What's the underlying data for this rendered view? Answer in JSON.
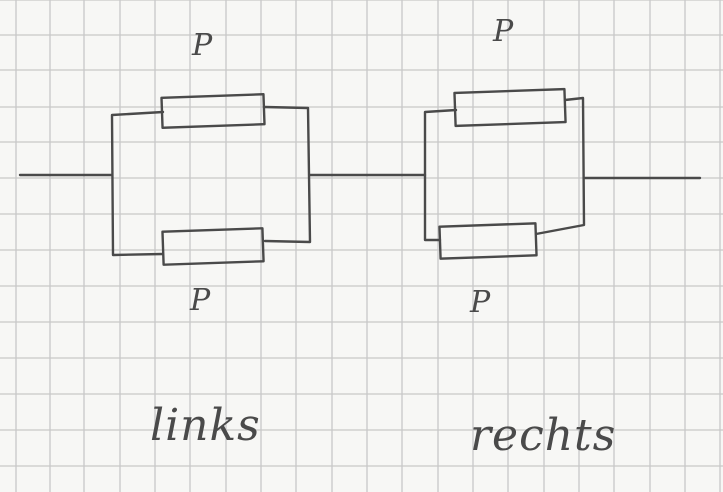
{
  "labels": {
    "left_top": "P",
    "left_bottom": "P",
    "right_top": "P",
    "right_bottom": "P",
    "left_caption": "links",
    "right_caption": "rechts"
  },
  "colors": {
    "paper": "#f7f7f5",
    "grid": "#c8c8c8",
    "ink": "#4a4a4a"
  }
}
